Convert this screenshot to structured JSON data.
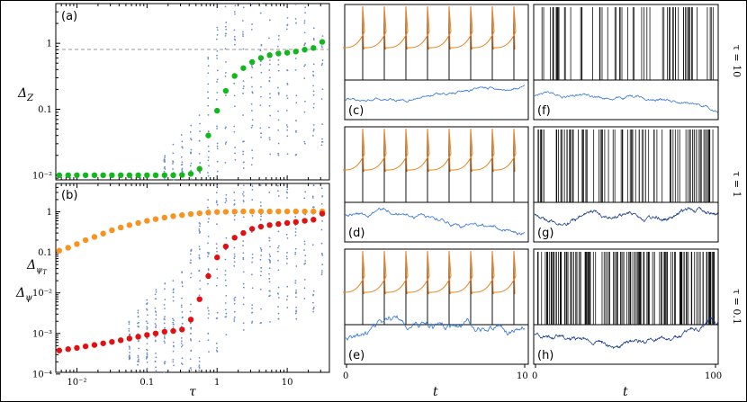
{
  "colors": {
    "scatter": "#6c8fc6",
    "green": "#10b81c",
    "orange": "#f7931e",
    "red": "#e21010",
    "trace_orange": "#e8821e",
    "trace_blue": "#2a6fd8",
    "spike_black": "#111111",
    "dark_blue": "#0a2f80"
  },
  "labels": {
    "panel_a": "(a)",
    "panel_b": "(b)",
    "panel_c": "(c)",
    "panel_d": "(d)",
    "panel_e": "(e)",
    "panel_f": "(f)",
    "panel_g": "(g)",
    "panel_h": "(h)",
    "ylabel_a": "Δ_Z",
    "ylabel_b_top": "Δ_ψT",
    "ylabel_b_bottom": "Δ_ψ",
    "xlabel_left": "τ",
    "xlabel_mid": "t",
    "xlabel_right": "t",
    "tau_row1": "τ = 10",
    "tau_row2": "τ = 1",
    "tau_row3": "τ = 0.1",
    "mid_x0": "0",
    "mid_x1": "10",
    "right_x0": "0",
    "right_x1": "100"
  },
  "chart_data": [
    {
      "id": "a",
      "type": "scatter",
      "xscale": "log",
      "yscale": "log",
      "xlim": [
        0.005,
        40
      ],
      "ylim": [
        0.0085,
        4
      ],
      "yticks": [
        {
          "value": 0.01,
          "label": "10⁻²"
        },
        {
          "value": 0.1,
          "label": "0.1"
        },
        {
          "value": 1,
          "label": "1"
        }
      ],
      "reference_line": 1,
      "series": [
        {
          "color_key": "green",
          "x": [
            0.0056,
            0.0075,
            0.01,
            0.0133,
            0.0178,
            0.0237,
            0.0316,
            0.0422,
            0.0562,
            0.075,
            0.1,
            0.133,
            0.178,
            0.237,
            0.316,
            0.422,
            0.562,
            0.75,
            1.0,
            1.33,
            1.78,
            2.37,
            3.16,
            4.22,
            5.62,
            7.5,
            10.0,
            13.3,
            17.8,
            23.7,
            31.6
          ],
          "y": [
            0.01,
            0.01,
            0.01,
            0.01,
            0.01,
            0.01,
            0.01,
            0.01,
            0.01,
            0.01,
            0.01,
            0.01,
            0.01,
            0.01,
            0.0101,
            0.0105,
            0.0125,
            0.04,
            0.095,
            0.19,
            0.32,
            0.42,
            0.52,
            0.6,
            0.66,
            0.7,
            0.72,
            0.75,
            0.8,
            0.85,
            1.05
          ]
        }
      ]
    },
    {
      "id": "b",
      "type": "scatter",
      "xscale": "log",
      "yscale": "log",
      "xlim": [
        0.005,
        40
      ],
      "ylim": [
        0.00011,
        5
      ],
      "xticks": [
        {
          "value": 0.01,
          "label": "10⁻²"
        },
        {
          "value": 0.1,
          "label": "0.1"
        },
        {
          "value": 1,
          "label": "1"
        },
        {
          "value": 10,
          "label": "10"
        }
      ],
      "yticks": [
        {
          "value": 0.0001,
          "label": "10⁻⁴"
        },
        {
          "value": 0.001,
          "label": "10⁻³"
        },
        {
          "value": 0.01,
          "label": "10⁻²"
        },
        {
          "value": 0.1,
          "label": "0.1"
        },
        {
          "value": 1,
          "label": "1"
        }
      ],
      "series": [
        {
          "color_key": "orange",
          "x": [
            0.0056,
            0.0075,
            0.01,
            0.0133,
            0.0178,
            0.0237,
            0.0316,
            0.0422,
            0.0562,
            0.075,
            0.1,
            0.133,
            0.178,
            0.237,
            0.316,
            0.422,
            0.562,
            0.75,
            1.0,
            1.33,
            1.78,
            2.37,
            3.16,
            4.22,
            5.62,
            7.5,
            10.0,
            13.3,
            17.8,
            23.7,
            31.6
          ],
          "y": [
            0.11,
            0.13,
            0.16,
            0.2,
            0.24,
            0.29,
            0.35,
            0.41,
            0.47,
            0.53,
            0.6,
            0.66,
            0.72,
            0.78,
            0.83,
            0.88,
            0.92,
            0.96,
            0.99,
            1.0,
            1.01,
            1.02,
            1.02,
            1.02,
            1.02,
            1.02,
            1.02,
            1.02,
            1.02,
            1.02,
            1.02
          ]
        },
        {
          "color_key": "red",
          "x": [
            0.0056,
            0.0075,
            0.01,
            0.0133,
            0.0178,
            0.0237,
            0.0316,
            0.0422,
            0.0562,
            0.075,
            0.1,
            0.133,
            0.178,
            0.237,
            0.316,
            0.422,
            0.562,
            0.75,
            1.0,
            1.33,
            1.78,
            2.37,
            3.16,
            4.22,
            5.62,
            7.5,
            10.0,
            13.3,
            17.8,
            23.7,
            31.6
          ],
          "y": [
            0.00038,
            0.00041,
            0.00044,
            0.00048,
            0.00052,
            0.00057,
            0.00062,
            0.00068,
            0.00075,
            0.00083,
            0.00092,
            0.001,
            0.0011,
            0.00115,
            0.00125,
            0.0022,
            0.007,
            0.026,
            0.075,
            0.14,
            0.23,
            0.3,
            0.38,
            0.43,
            0.47,
            0.5,
            0.53,
            0.56,
            0.6,
            0.64,
            0.9
          ]
        }
      ]
    }
  ]
}
